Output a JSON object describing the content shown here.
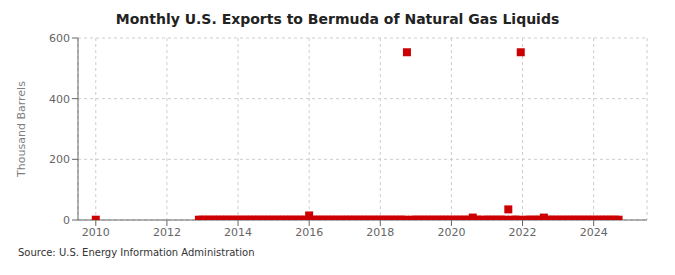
{
  "chart_data": {
    "type": "scatter",
    "title": "Monthly U.S. Exports to Bermuda of Natural Gas Liquids",
    "y_label": "Thousand Barrels",
    "annotation": "Source: U.S. Energy Information Administration",
    "color": "#cc0000",
    "marker": "square",
    "grid": true,
    "xlim": [
      2009.5,
      2025.5
    ],
    "xticks": [
      2010,
      2012,
      2014,
      2016,
      2018,
      2020,
      2022,
      2024
    ],
    "ylim": [
      0,
      600
    ],
    "yticks": [
      0,
      200,
      400,
      600
    ],
    "x": [
      2010.0,
      2012.9,
      2013.0,
      2013.1,
      2013.2,
      2013.3,
      2013.4,
      2013.5,
      2013.6,
      2013.7,
      2013.8,
      2013.9,
      2014.0,
      2014.1,
      2014.2,
      2014.3,
      2014.4,
      2014.5,
      2014.6,
      2014.7,
      2014.8,
      2014.9,
      2015.0,
      2015.1,
      2015.2,
      2015.3,
      2015.4,
      2015.5,
      2015.6,
      2015.7,
      2015.8,
      2015.9,
      2016.0,
      2016.1,
      2016.2,
      2016.3,
      2016.4,
      2016.5,
      2016.6,
      2016.7,
      2016.8,
      2016.9,
      2017.0,
      2017.1,
      2017.2,
      2017.3,
      2017.4,
      2017.5,
      2017.6,
      2017.7,
      2017.8,
      2017.9,
      2018.0,
      2018.1,
      2018.2,
      2018.3,
      2018.4,
      2018.5,
      2018.6,
      2018.7,
      2018.75,
      2018.9,
      2019.0,
      2019.1,
      2019.2,
      2019.3,
      2019.4,
      2019.5,
      2019.6,
      2019.7,
      2019.8,
      2019.9,
      2020.0,
      2020.1,
      2020.2,
      2020.3,
      2020.4,
      2020.5,
      2020.6,
      2020.7,
      2020.75,
      2020.9,
      2021.0,
      2021.1,
      2021.2,
      2021.3,
      2021.4,
      2021.5,
      2021.6,
      2021.7,
      2021.8,
      2021.9,
      2021.95,
      2022.1,
      2022.2,
      2022.3,
      2022.4,
      2022.5,
      2022.6,
      2022.7,
      2022.8,
      2022.9,
      2023.0,
      2023.1,
      2023.2,
      2023.3,
      2023.4,
      2023.5,
      2023.6,
      2023.7,
      2023.8,
      2023.9,
      2024.0,
      2024.1,
      2024.2,
      2024.3,
      2024.4,
      2024.5,
      2024.6,
      2024.7
    ],
    "values": [
      1,
      1,
      1,
      1,
      1,
      1,
      1,
      1,
      1,
      1,
      1,
      1,
      1,
      1,
      1,
      1,
      1,
      1,
      1,
      1,
      1,
      1,
      1,
      1,
      1,
      1,
      1,
      1,
      1,
      1,
      1,
      1,
      15,
      1,
      1,
      1,
      1,
      1,
      1,
      1,
      1,
      1,
      1,
      1,
      1,
      1,
      1,
      1,
      1,
      1,
      1,
      1,
      1,
      1,
      1,
      1,
      1,
      1,
      1,
      1,
      553,
      1,
      1,
      1,
      1,
      1,
      1,
      1,
      1,
      1,
      1,
      1,
      1,
      1,
      1,
      1,
      1,
      1,
      8,
      1,
      1,
      1,
      1,
      1,
      1,
      1,
      1,
      1,
      35,
      1,
      1,
      1,
      553,
      1,
      1,
      1,
      1,
      1,
      8,
      1,
      1,
      1,
      1,
      1,
      1,
      1,
      1,
      1,
      1,
      1,
      1,
      1,
      1,
      1,
      1,
      1,
      1,
      1,
      1,
      1
    ]
  }
}
